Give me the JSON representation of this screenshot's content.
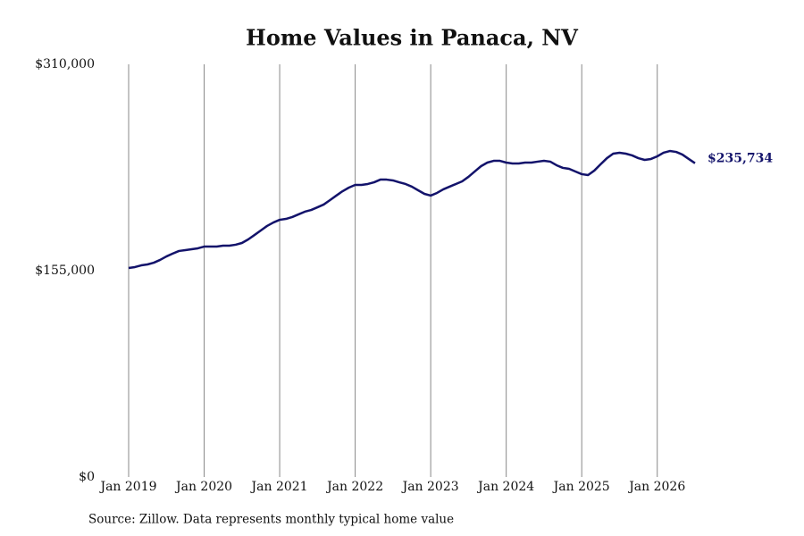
{
  "chart_data": {
    "type": "line",
    "title": "Home Values in Panaca, NV",
    "source": "Source: Zillow. Data represents monthly typical home value",
    "color": "#13136b",
    "x": [
      "2019-01",
      "2019-02",
      "2019-03",
      "2019-04",
      "2019-05",
      "2019-06",
      "2019-07",
      "2019-08",
      "2019-09",
      "2019-10",
      "2019-11",
      "2019-12",
      "2020-01",
      "2020-02",
      "2020-03",
      "2020-04",
      "2020-05",
      "2020-06",
      "2020-07",
      "2020-08",
      "2020-09",
      "2020-10",
      "2020-11",
      "2020-12",
      "2021-01",
      "2021-02",
      "2021-03",
      "2021-04",
      "2021-05",
      "2021-06",
      "2021-07",
      "2021-08",
      "2021-09",
      "2021-10",
      "2021-11",
      "2021-12",
      "2022-01",
      "2022-02",
      "2022-03",
      "2022-04",
      "2022-05",
      "2022-06",
      "2022-07",
      "2022-08",
      "2022-09",
      "2022-10",
      "2022-11",
      "2022-12",
      "2023-01",
      "2023-02",
      "2023-03",
      "2023-04",
      "2023-05",
      "2023-06",
      "2023-07",
      "2023-08",
      "2023-09",
      "2023-10",
      "2023-11",
      "2023-12",
      "2024-01",
      "2024-02",
      "2024-03",
      "2024-04",
      "2024-05",
      "2024-06",
      "2024-07",
      "2024-08",
      "2024-09",
      "2024-10",
      "2024-11",
      "2024-12",
      "2025-01",
      "2025-02",
      "2025-03",
      "2025-04",
      "2025-05",
      "2025-06",
      "2025-07",
      "2025-08",
      "2025-09",
      "2025-10",
      "2025-11",
      "2025-12",
      "2026-01",
      "2026-02",
      "2026-03",
      "2026-04",
      "2026-05",
      "2026-06",
      "2026-07"
    ],
    "values": [
      157000,
      157700,
      159000,
      159700,
      161000,
      163100,
      165700,
      167800,
      169800,
      170400,
      171100,
      171800,
      173100,
      173100,
      173100,
      173800,
      173800,
      174500,
      175800,
      178500,
      181800,
      185200,
      188600,
      191200,
      193200,
      193900,
      195300,
      197300,
      199300,
      200600,
      202600,
      204700,
      208000,
      211400,
      214700,
      217400,
      219400,
      219400,
      220100,
      221400,
      223400,
      223400,
      222800,
      221400,
      220100,
      218100,
      215400,
      212700,
      211400,
      213400,
      216100,
      218100,
      220100,
      222100,
      225500,
      229500,
      233500,
      236200,
      237500,
      237500,
      236200,
      235500,
      235500,
      236200,
      236200,
      236900,
      237500,
      236900,
      234200,
      232200,
      231500,
      229500,
      227500,
      226800,
      230200,
      234900,
      239500,
      242900,
      243600,
      242900,
      241600,
      239500,
      238200,
      238900,
      240900,
      243600,
      244900,
      244200,
      242200,
      238900,
      235734
    ],
    "value_labels": [
      null,
      null,
      null,
      null,
      null,
      null,
      null,
      null,
      null,
      null,
      null,
      null,
      null,
      null,
      null,
      null,
      null,
      null,
      null,
      null,
      null,
      null,
      null,
      null,
      null,
      null,
      null,
      null,
      null,
      null,
      null,
      null,
      null,
      null,
      null,
      null,
      null,
      null,
      null,
      null,
      null,
      null,
      null,
      null,
      null,
      null,
      null,
      null,
      null,
      null,
      null,
      null,
      null,
      null,
      null,
      null,
      null,
      null,
      null,
      null,
      null,
      null,
      null,
      null,
      null,
      null,
      null,
      null,
      null,
      null,
      null,
      null,
      null,
      null,
      null,
      null,
      null,
      null,
      null,
      null,
      null,
      null,
      null,
      null,
      null,
      null,
      null,
      null,
      null,
      null,
      "$235,734"
    ],
    "xlim": [
      "2019-01",
      "2026-07"
    ],
    "xticks": [
      {
        "value": "2019-01",
        "label": "Jan 2019"
      },
      {
        "value": "2020-01",
        "label": "Jan 2020"
      },
      {
        "value": "2021-01",
        "label": "Jan 2021"
      },
      {
        "value": "2022-01",
        "label": "Jan 2022"
      },
      {
        "value": "2023-01",
        "label": "Jan 2023"
      },
      {
        "value": "2024-01",
        "label": "Jan 2024"
      },
      {
        "value": "2025-01",
        "label": "Jan 2025"
      },
      {
        "value": "2026-01",
        "label": "Jan 2026"
      }
    ],
    "ylim": [
      0,
      310000
    ],
    "yticks": [
      {
        "value": 0,
        "label": "$0"
      },
      {
        "value": 155000,
        "label": "$155,000"
      },
      {
        "value": 310000,
        "label": "$310,000"
      }
    ],
    "grid": "x"
  }
}
